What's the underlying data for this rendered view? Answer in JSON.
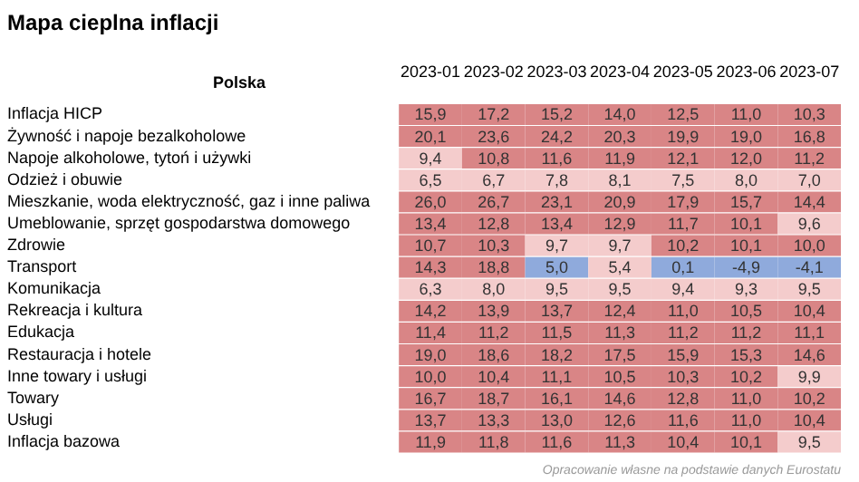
{
  "chart_data": {
    "type": "heatmap",
    "title": "Mapa cieplna inflacji",
    "ylabel": "Polska",
    "categories": [
      "2023-01",
      "2023-02",
      "2023-03",
      "2023-04",
      "2023-05",
      "2023-06",
      "2023-07"
    ],
    "y_categories": [
      "Inflacja HICP",
      "Żywność i napoje bezalkoholowe",
      "Napoje alkoholowe, tytoń i używki",
      "Odzież i obuwie",
      "Mieszkanie, woda elektryczność, gaz i inne paliwa",
      "Umeblowanie, sprzęt gospodarstwa domowego",
      "Zdrowie",
      "Transport",
      "Komunikacja",
      "Rekreacja i kultura",
      "Edukacja",
      "Restauracja i hotele",
      "Inne towary i usługi",
      "Towary",
      "Usługi",
      "Inflacja bazowa"
    ],
    "cells": [
      [
        15.9,
        17.2,
        15.2,
        14.0,
        12.5,
        11.0,
        10.3
      ],
      [
        20.1,
        23.6,
        24.2,
        20.3,
        19.9,
        19.0,
        16.8
      ],
      [
        9.4,
        10.8,
        11.6,
        11.9,
        12.1,
        12.0,
        11.2
      ],
      [
        6.5,
        6.7,
        7.8,
        8.1,
        7.5,
        8.0,
        7.0
      ],
      [
        26.0,
        26.7,
        23.1,
        20.9,
        17.9,
        15.7,
        14.4
      ],
      [
        13.4,
        12.8,
        13.4,
        12.9,
        11.7,
        10.1,
        9.6
      ],
      [
        10.7,
        10.3,
        9.7,
        9.7,
        10.2,
        10.1,
        10.0
      ],
      [
        14.3,
        18.8,
        5.0,
        5.4,
        0.1,
        -4.9,
        -4.1
      ],
      [
        6.3,
        8.0,
        9.5,
        9.5,
        9.4,
        9.3,
        9.5
      ],
      [
        14.2,
        13.9,
        13.7,
        12.4,
        11.0,
        10.5,
        10.4
      ],
      [
        11.4,
        11.2,
        11.5,
        11.3,
        11.2,
        11.2,
        11.1
      ],
      [
        19.0,
        18.6,
        18.2,
        17.5,
        15.9,
        15.3,
        14.6
      ],
      [
        10.0,
        10.4,
        11.1,
        10.5,
        10.3,
        10.2,
        9.9
      ],
      [
        16.7,
        18.7,
        16.1,
        14.6,
        12.8,
        11.0,
        10.2
      ],
      [
        13.7,
        13.3,
        13.0,
        12.6,
        11.6,
        11.0,
        10.4
      ],
      [
        11.9,
        11.8,
        11.6,
        11.3,
        10.4,
        10.1,
        9.5
      ]
    ],
    "cell_labels": [
      [
        "15,9",
        "17,2",
        "15,2",
        "14,0",
        "12,5",
        "11,0",
        "10,3"
      ],
      [
        "20,1",
        "23,6",
        "24,2",
        "20,3",
        "19,9",
        "19,0",
        "16,8"
      ],
      [
        "9,4",
        "10,8",
        "11,6",
        "11,9",
        "12,1",
        "12,0",
        "11,2"
      ],
      [
        "6,5",
        "6,7",
        "7,8",
        "8,1",
        "7,5",
        "8,0",
        "7,0"
      ],
      [
        "26,0",
        "26,7",
        "23,1",
        "20,9",
        "17,9",
        "15,7",
        "14,4"
      ],
      [
        "13,4",
        "12,8",
        "13,4",
        "12,9",
        "11,7",
        "10,1",
        "9,6"
      ],
      [
        "10,7",
        "10,3",
        "9,7",
        "9,7",
        "10,2",
        "10,1",
        "10,0"
      ],
      [
        "14,3",
        "18,8",
        "5,0",
        "5,4",
        "0,1",
        "-4,9",
        "-4,1"
      ],
      [
        "6,3",
        "8,0",
        "9,5",
        "9,5",
        "9,4",
        "9,3",
        "9,5"
      ],
      [
        "14,2",
        "13,9",
        "13,7",
        "12,4",
        "11,0",
        "10,5",
        "10,4"
      ],
      [
        "11,4",
        "11,2",
        "11,5",
        "11,3",
        "11,2",
        "11,2",
        "11,1"
      ],
      [
        "19,0",
        "18,6",
        "18,2",
        "17,5",
        "15,9",
        "15,3",
        "14,6"
      ],
      [
        "10,0",
        "10,4",
        "11,1",
        "10,5",
        "10,3",
        "10,2",
        "9,9"
      ],
      [
        "16,7",
        "18,7",
        "16,1",
        "14,6",
        "12,8",
        "11,0",
        "10,2"
      ],
      [
        "13,7",
        "13,3",
        "13,0",
        "12,6",
        "11,6",
        "11,0",
        "10,4"
      ],
      [
        "11,9",
        "11,8",
        "11,6",
        "11,3",
        "10,4",
        "10,1",
        "9,5"
      ]
    ],
    "colors": [
      "#8faadc",
      "#f4cccc",
      "#d98586"
    ],
    "annotations": [
      "Opracowanie własne na podstawie danych Eurostatu"
    ]
  }
}
